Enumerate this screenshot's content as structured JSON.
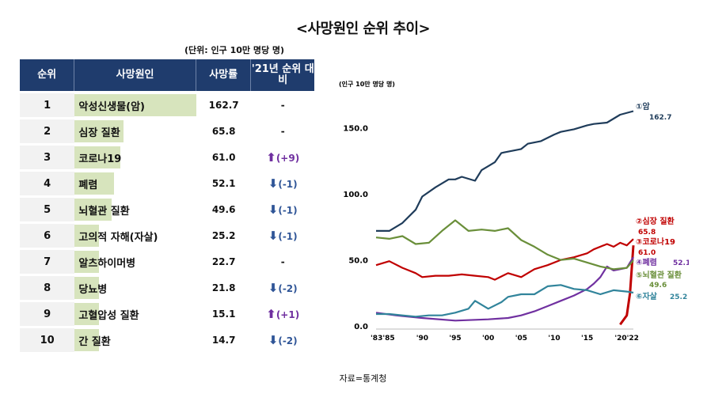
{
  "title": "<사망원인 순위 추이>",
  "table": {
    "unit": "(단위: 인구 10만 명당 명)",
    "headers": [
      "순위",
      "사망원인",
      "사망률",
      "'21년 순위 대비"
    ],
    "rows": [
      {
        "rank": "1",
        "cause": "악성신생물(암)",
        "rate": "162.7",
        "rate_value": 162.7,
        "change": "-",
        "dir": "none"
      },
      {
        "rank": "2",
        "cause": "심장 질환",
        "rate": "65.8",
        "rate_value": 65.8,
        "change": "-",
        "dir": "none"
      },
      {
        "rank": "3",
        "cause": "코로나19",
        "rate": "61.0",
        "rate_value": 61.0,
        "change": "(+9)",
        "dir": "up"
      },
      {
        "rank": "4",
        "cause": "폐렴",
        "rate": "52.1",
        "rate_value": 52.1,
        "change": "(-1)",
        "dir": "down"
      },
      {
        "rank": "5",
        "cause": "뇌혈관 질환",
        "rate": "49.6",
        "rate_value": 49.6,
        "change": "(-1)",
        "dir": "down"
      },
      {
        "rank": "6",
        "cause": "고의적 자해(자살)",
        "rate": "25.2",
        "rate_value": 25.2,
        "change": "(-1)",
        "dir": "down"
      },
      {
        "rank": "7",
        "cause": "알츠하이머병",
        "rate": "22.7",
        "rate_value": 22.7,
        "change": "-",
        "dir": "none"
      },
      {
        "rank": "8",
        "cause": "당뇨병",
        "rate": "21.8",
        "rate_value": 21.8,
        "change": "(-2)",
        "dir": "down"
      },
      {
        "rank": "9",
        "cause": "고혈압성 질환",
        "rate": "15.1",
        "rate_value": 15.1,
        "change": "(+1)",
        "dir": "up"
      },
      {
        "rank": "10",
        "cause": "간 질환",
        "rate": "14.7",
        "rate_value": 14.7,
        "change": "(-2)",
        "dir": "down"
      }
    ]
  },
  "source": "자료=통계청",
  "colors": {
    "header": "#1f3c6d",
    "bar": "#d7e4bd",
    "up": "#7030a0",
    "down": "#2f5597"
  },
  "chart_data": {
    "type": "line",
    "ylabel": "(인구 10만 명당 명)",
    "ylim": [
      0,
      175
    ],
    "yticks": [
      "0.0",
      "50.0",
      "100.0",
      "150.0"
    ],
    "ytick_values": [
      0,
      50,
      100,
      150
    ],
    "xlim": [
      1983,
      2022
    ],
    "xtick_labels": [
      "'83'85",
      "'90",
      "'95",
      "'00",
      "'05",
      "'10",
      "'15",
      "'20'22"
    ],
    "xtick_positions": [
      1984,
      1990,
      1995,
      2000,
      2005,
      2010,
      2015,
      2021
    ],
    "grid": false,
    "legend": "right-side line-end labels",
    "series": [
      {
        "name": "①암",
        "value_label": "162.7",
        "color": "#1f3c5a",
        "x": [
          1983,
          1985,
          1987,
          1989,
          1990,
          1992,
          1994,
          1995,
          1996,
          1998,
          1999,
          2000,
          2001,
          2002,
          2003,
          2005,
          2006,
          2008,
          2010,
          2011,
          2013,
          2015,
          2016,
          2018,
          2019,
          2020,
          2022
        ],
        "y": [
          72,
          72,
          78,
          88,
          98,
          105,
          111,
          111,
          113,
          110,
          118,
          121,
          124,
          131,
          132,
          134,
          138,
          140,
          145,
          147,
          149,
          152,
          153,
          154,
          157,
          160,
          162.7
        ]
      },
      {
        "name": "②심장 질환",
        "value_label": "65.8",
        "color": "#c00000",
        "x": [
          1983,
          1985,
          1987,
          1989,
          1990,
          1992,
          1994,
          1996,
          1998,
          2000,
          2001,
          2003,
          2005,
          2007,
          2009,
          2011,
          2013,
          2015,
          2016,
          2018,
          2019,
          2020,
          2021,
          2022
        ],
        "y": [
          46,
          49,
          44,
          40,
          37,
          38,
          38,
          39,
          38,
          37,
          35,
          40,
          37,
          43,
          46,
          50,
          52,
          55,
          58,
          62,
          60,
          63,
          61,
          65.8
        ]
      },
      {
        "name": "③코로나19",
        "value_label": "61.0",
        "color": "#c00000",
        "x": [
          2020,
          2021,
          2021.5,
          2022
        ],
        "y": [
          1,
          8,
          25,
          61
        ]
      },
      {
        "name": "④폐렴",
        "value_label": "52.1",
        "color": "#7030a0",
        "x": [
          1983,
          1986,
          1990,
          1995,
          2000,
          2003,
          2005,
          2007,
          2009,
          2011,
          2013,
          2015,
          2016,
          2017,
          2018,
          2019,
          2020,
          2021,
          2022
        ],
        "y": [
          10,
          8,
          6,
          4,
          5,
          6,
          8,
          11,
          15,
          19,
          23,
          28,
          32,
          37,
          45,
          42,
          43,
          44,
          52.1
        ]
      },
      {
        "name": "⑤뇌혈관 질환",
        "value_label": "49.6",
        "color": "#6a8f3a",
        "x": [
          1983,
          1985,
          1987,
          1989,
          1991,
          1993,
          1995,
          1997,
          1999,
          2001,
          2003,
          2005,
          2007,
          2009,
          2011,
          2013,
          2015,
          2017,
          2019,
          2021,
          2022
        ],
        "y": [
          67,
          66,
          68,
          62,
          63,
          72,
          80,
          72,
          73,
          72,
          74,
          65,
          60,
          54,
          50,
          51,
          48,
          45,
          43,
          44,
          49.6
        ]
      },
      {
        "name": "⑥자살",
        "value_label": "25.2",
        "color": "#31849b",
        "x": [
          1983,
          1985,
          1987,
          1989,
          1991,
          1993,
          1995,
          1997,
          1998,
          2000,
          2002,
          2003,
          2005,
          2007,
          2009,
          2011,
          2013,
          2015,
          2017,
          2019,
          2021,
          2022
        ],
        "y": [
          9,
          9,
          8,
          7,
          8,
          8,
          10,
          13,
          19,
          13,
          18,
          22,
          24,
          24,
          30,
          31,
          28,
          27,
          24,
          27,
          26,
          25.2
        ]
      }
    ]
  }
}
